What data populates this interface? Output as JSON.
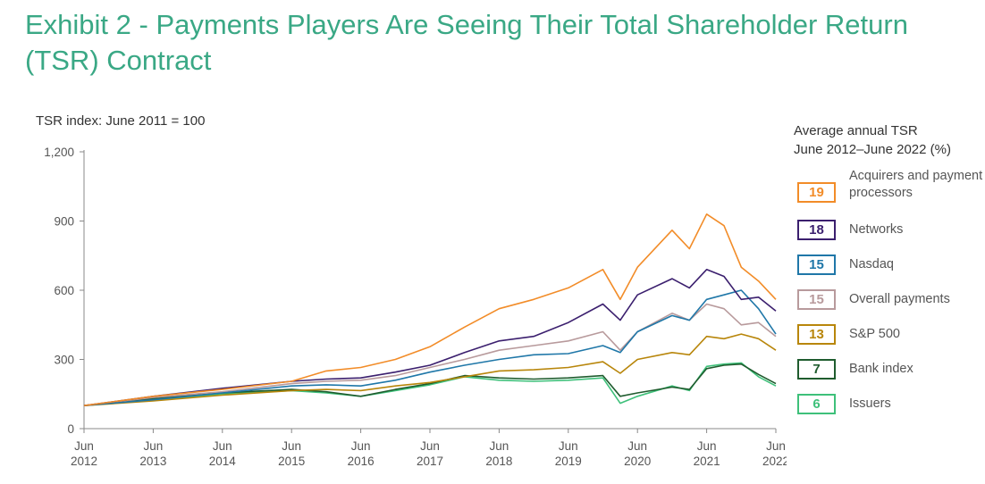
{
  "title": "Exhibit 2 - Payments Players Are Seeing Their Total Shareholder Return (TSR) Contract",
  "chart_data": {
    "type": "line",
    "ylabel": "TSR index: June 2011 = 100",
    "ylim": [
      0,
      1200
    ],
    "yticks": [
      "0",
      "300",
      "600",
      "900",
      "1,200"
    ],
    "xlim": [
      2012,
      2022
    ],
    "xticks": [
      {
        "month": "Jun",
        "year": "2012"
      },
      {
        "month": "Jun",
        "year": "2013"
      },
      {
        "month": "Jun",
        "year": "2014"
      },
      {
        "month": "Jun",
        "year": "2015"
      },
      {
        "month": "Jun",
        "year": "2016"
      },
      {
        "month": "Jun",
        "year": "2017"
      },
      {
        "month": "Jun",
        "year": "2018"
      },
      {
        "month": "Jun",
        "year": "2019"
      },
      {
        "month": "Jun",
        "year": "2020"
      },
      {
        "month": "Jun",
        "year": "2021"
      },
      {
        "month": "Jun",
        "year": "2022"
      }
    ],
    "legend_title": "Average annual TSR June 2012–June 2022 (%)",
    "legend_title_lines": [
      "Average annual TSR",
      "June 2012–June 2022 (%)"
    ],
    "legend_position": "right",
    "grid": false,
    "series": [
      {
        "name": "Acquirers and payment processors",
        "tsr": "19",
        "color": "#f28c28",
        "x": [
          2012,
          2013,
          2014,
          2015,
          2015.5,
          2016,
          2016.5,
          2017,
          2017.5,
          2018,
          2018.5,
          2019,
          2019.5,
          2019.75,
          2020,
          2020.5,
          2020.75,
          2021,
          2021.25,
          2021.5,
          2021.75,
          2022
        ],
        "y": [
          100,
          140,
          170,
          205,
          250,
          265,
          300,
          355,
          440,
          520,
          560,
          610,
          690,
          560,
          700,
          860,
          780,
          930,
          880,
          700,
          640,
          560
        ]
      },
      {
        "name": "Networks",
        "tsr": "18",
        "color": "#3b1f6e",
        "x": [
          2012,
          2013,
          2014,
          2015,
          2015.5,
          2016,
          2016.5,
          2017,
          2017.5,
          2018,
          2018.5,
          2019,
          2019.5,
          2019.75,
          2020,
          2020.5,
          2020.75,
          2021,
          2021.25,
          2021.5,
          2021.75,
          2022
        ],
        "y": [
          100,
          140,
          175,
          205,
          215,
          220,
          245,
          275,
          330,
          380,
          400,
          460,
          540,
          470,
          580,
          650,
          610,
          690,
          660,
          560,
          570,
          510
        ]
      },
      {
        "name": "Nasdaq",
        "tsr": "15",
        "color": "#1f77a8",
        "x": [
          2012,
          2013,
          2014,
          2015,
          2015.5,
          2016,
          2016.5,
          2017,
          2017.5,
          2018,
          2018.5,
          2019,
          2019.5,
          2019.75,
          2020,
          2020.5,
          2020.75,
          2021,
          2021.25,
          2021.5,
          2021.75,
          2022
        ],
        "y": [
          100,
          125,
          155,
          185,
          190,
          185,
          210,
          245,
          275,
          300,
          320,
          325,
          360,
          330,
          420,
          490,
          470,
          560,
          580,
          600,
          520,
          410
        ]
      },
      {
        "name": "Overall payments",
        "tsr": "15",
        "color": "#b89a9c",
        "x": [
          2012,
          2013,
          2014,
          2015,
          2015.5,
          2016,
          2016.5,
          2017,
          2017.5,
          2018,
          2018.5,
          2019,
          2019.5,
          2019.75,
          2020,
          2020.5,
          2020.75,
          2021,
          2021.25,
          2021.5,
          2021.75,
          2022
        ],
        "y": [
          100,
          135,
          160,
          195,
          205,
          210,
          230,
          265,
          300,
          340,
          360,
          380,
          420,
          340,
          420,
          500,
          470,
          540,
          520,
          450,
          460,
          400
        ]
      },
      {
        "name": "S&P 500",
        "tsr": "13",
        "color": "#b8860b",
        "x": [
          2012,
          2013,
          2014,
          2015,
          2015.5,
          2016,
          2016.5,
          2017,
          2017.5,
          2018,
          2018.5,
          2019,
          2019.5,
          2019.75,
          2020,
          2020.5,
          2020.75,
          2021,
          2021.25,
          2021.5,
          2021.75,
          2022
        ],
        "y": [
          100,
          120,
          145,
          165,
          170,
          165,
          185,
          200,
          225,
          250,
          255,
          265,
          290,
          240,
          300,
          330,
          320,
          400,
          390,
          410,
          390,
          340
        ]
      },
      {
        "name": "Bank index",
        "tsr": "7",
        "color": "#1f5c2e",
        "x": [
          2012,
          2013,
          2014,
          2015,
          2015.5,
          2016,
          2016.5,
          2017,
          2017.5,
          2018,
          2018.5,
          2019,
          2019.5,
          2019.75,
          2020,
          2020.5,
          2020.75,
          2021,
          2021.25,
          2021.5,
          2021.75,
          2022
        ],
        "y": [
          100,
          130,
          155,
          170,
          160,
          140,
          170,
          195,
          230,
          220,
          215,
          220,
          230,
          140,
          155,
          180,
          170,
          260,
          275,
          280,
          235,
          195
        ]
      },
      {
        "name": "Issuers",
        "tsr": "6",
        "color": "#3ec07a",
        "x": [
          2012,
          2013,
          2014,
          2015,
          2015.5,
          2016,
          2016.5,
          2017,
          2017.5,
          2018,
          2018.5,
          2019,
          2019.5,
          2019.75,
          2020,
          2020.5,
          2020.75,
          2021,
          2021.25,
          2021.5,
          2021.75,
          2022
        ],
        "y": [
          100,
          125,
          150,
          165,
          155,
          140,
          165,
          190,
          225,
          210,
          205,
          210,
          220,
          110,
          140,
          185,
          165,
          270,
          280,
          285,
          225,
          185
        ]
      }
    ]
  }
}
